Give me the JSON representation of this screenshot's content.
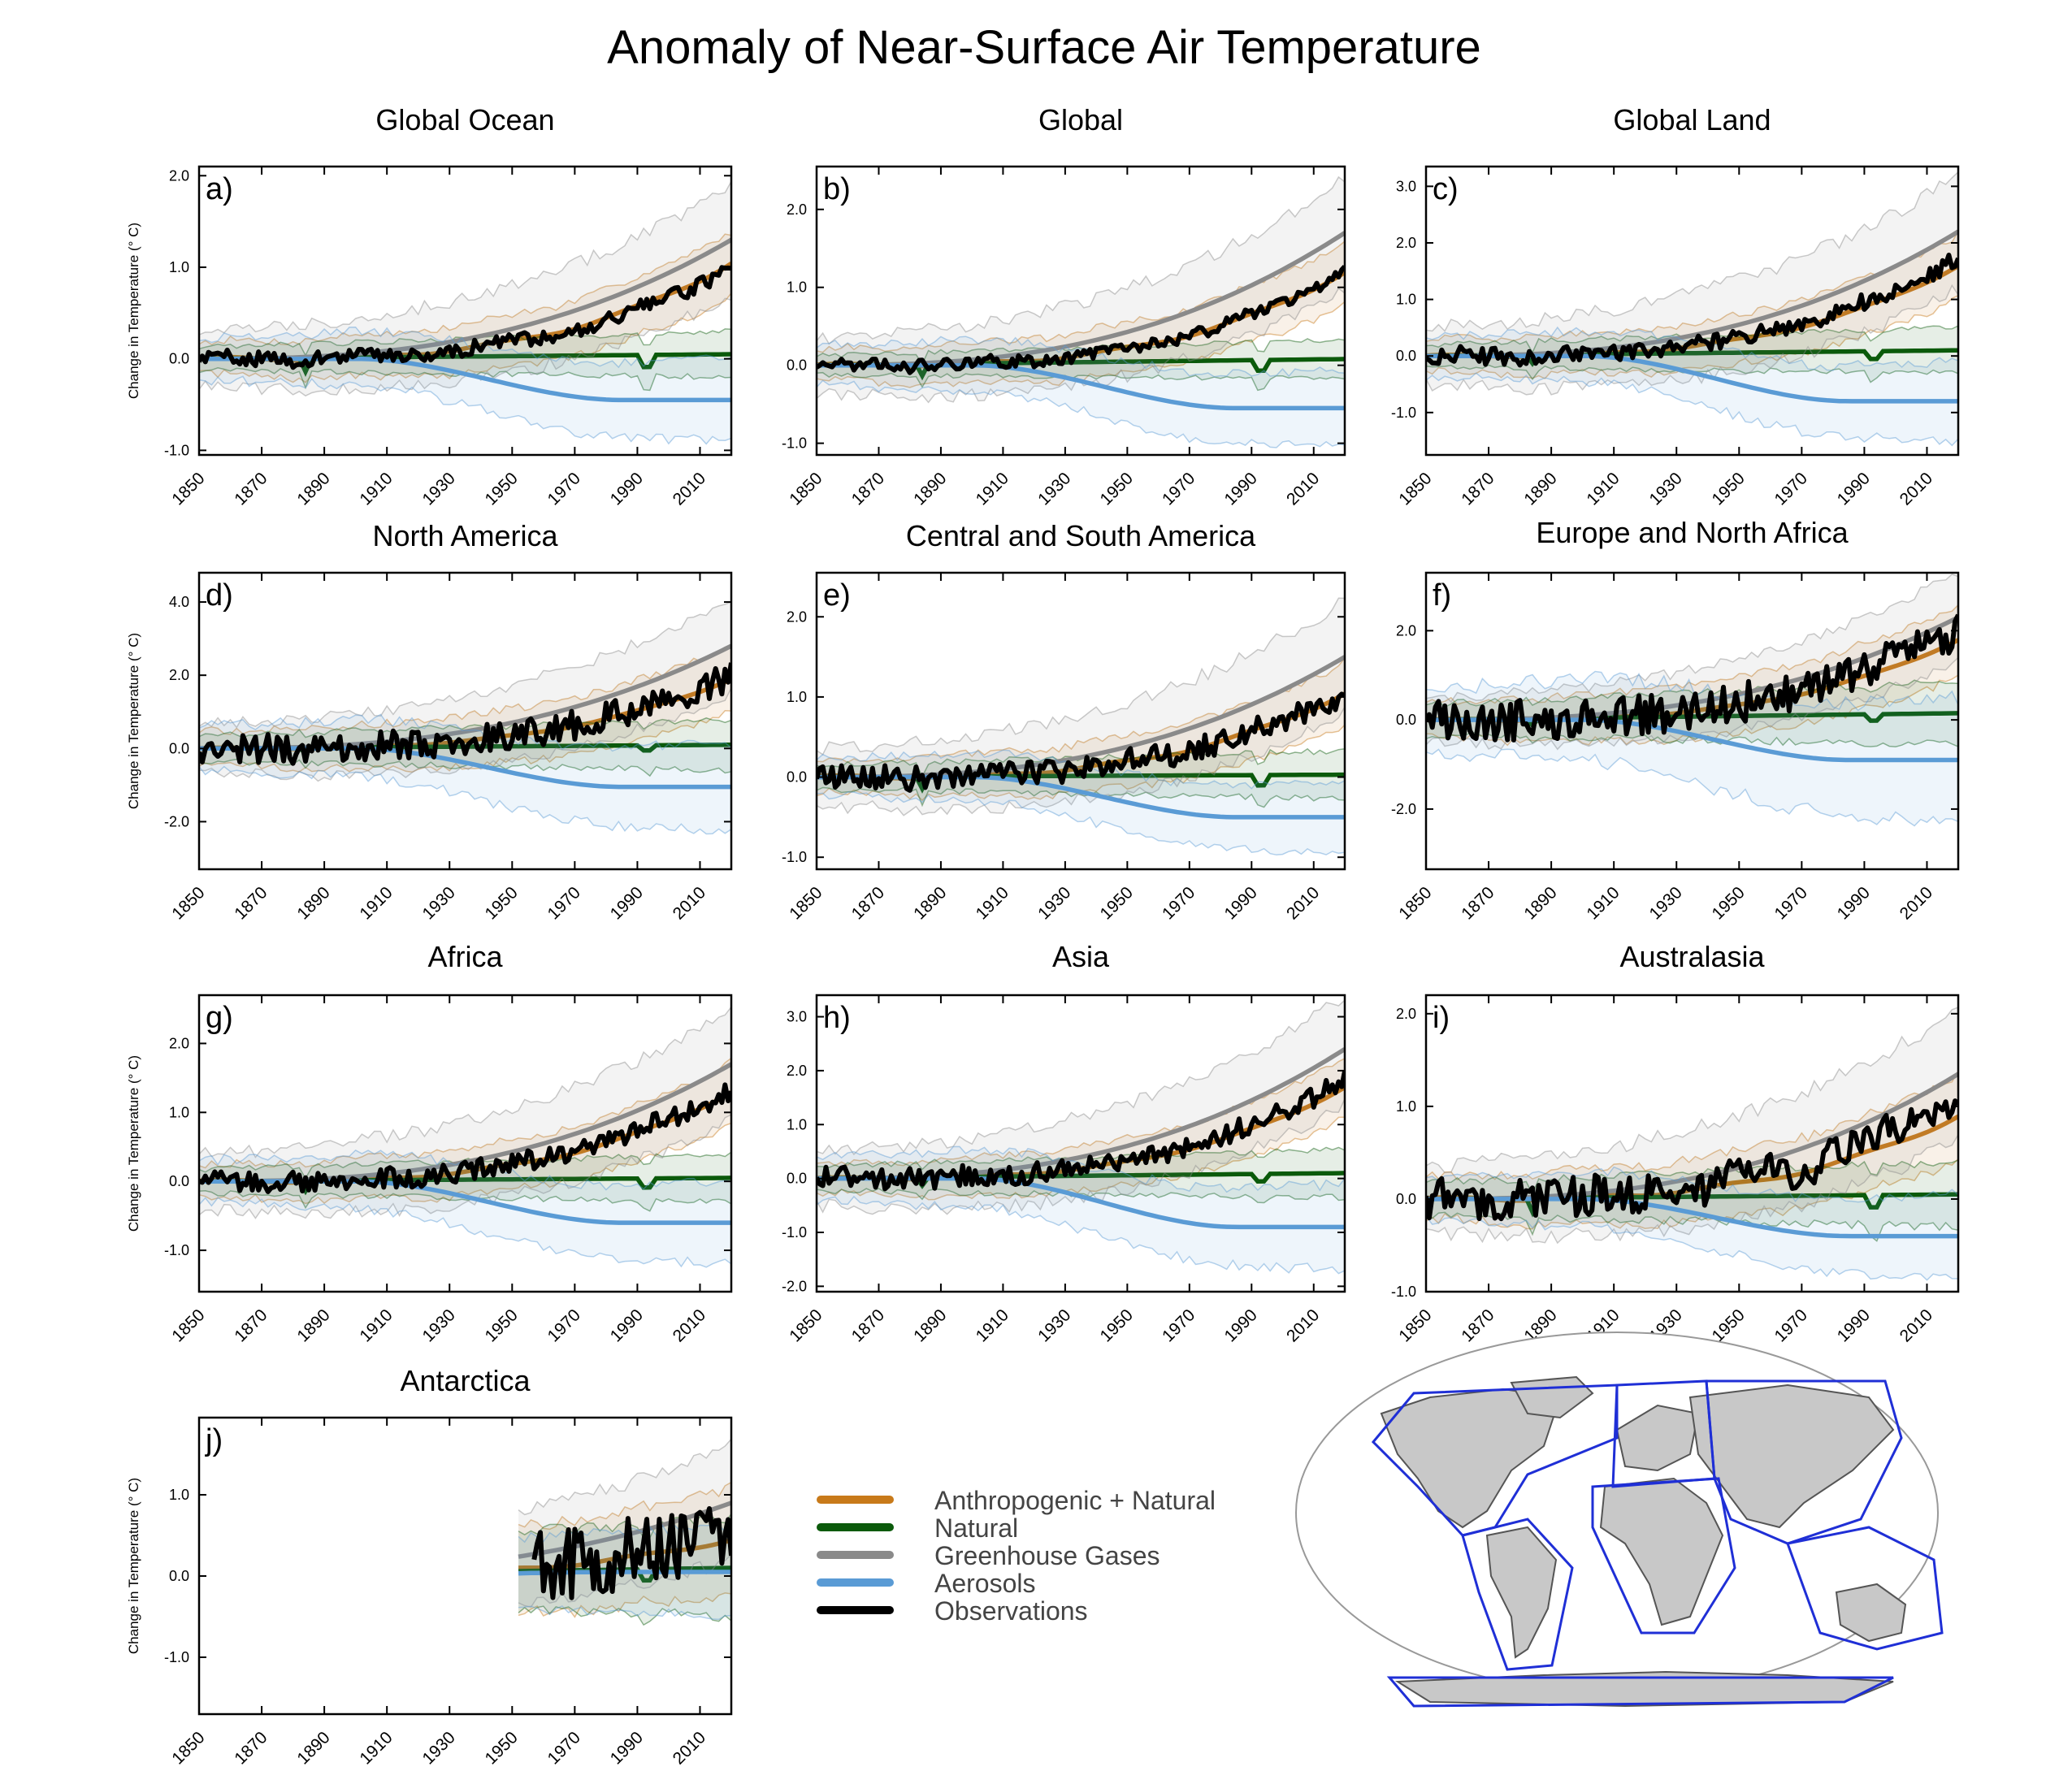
{
  "title": "Anomaly of Near-Surface Air Temperature",
  "y_axis_label": "Change in Temperature (° C)",
  "colors": {
    "anthropogenic_natural": "#c87a1a",
    "natural": "#0b5a0b",
    "ghg": "#8a8a8a",
    "aerosols": "#5a9bd5",
    "observations": "#000000",
    "map_outline": "#1f2fd6",
    "land": "#c8c8c8"
  },
  "legend": {
    "items": [
      {
        "label": "Anthropogenic + Natural",
        "color": "#c87a1a"
      },
      {
        "label": "Natural",
        "color": "#0b5a0b"
      },
      {
        "label": "Greenhouse Gases",
        "color": "#8a8a8a"
      },
      {
        "label": "Aerosols",
        "color": "#5a9bd5"
      },
      {
        "label": "Observations",
        "color": "#000000"
      }
    ]
  },
  "map": {
    "type": "world-map",
    "region_outline_color": "#1f2fd6"
  },
  "chart_data": [
    {
      "letter": "a)",
      "title": "Global Ocean",
      "type": "line",
      "x": [
        1850,
        2020
      ],
      "xticks": [
        "1850",
        "1870",
        "1890",
        "1910",
        "1930",
        "1950",
        "1970",
        "1990",
        "2010"
      ],
      "ylim": [
        -1.05,
        2.1
      ],
      "yticks": [
        "-1.0",
        "0.0",
        "1.0",
        "2.0"
      ],
      "ytick_values": [
        -1,
        0,
        1,
        2
      ],
      "series": [
        {
          "name": "Anthropogenic + Natural",
          "end": 1.05,
          "band": 0.35
        },
        {
          "name": "Natural",
          "end": 0.05,
          "band": 0.25
        },
        {
          "name": "Greenhouse Gases",
          "end": 1.3,
          "band": 0.6
        },
        {
          "name": "Aerosols",
          "end": -0.45,
          "band": 0.45
        },
        {
          "name": "Observations",
          "end": 1.0,
          "noise": 0.08,
          "start_year": 1850
        }
      ]
    },
    {
      "letter": "b)",
      "title": "Global",
      "type": "line",
      "x": [
        1850,
        2020
      ],
      "xticks": [
        "1850",
        "1870",
        "1890",
        "1910",
        "1930",
        "1950",
        "1970",
        "1990",
        "2010"
      ],
      "ylim": [
        -1.15,
        2.55
      ],
      "yticks": [
        "-1.0",
        "0.0",
        "1.0",
        "2.0"
      ],
      "ytick_values": [
        -1,
        0,
        1,
        2
      ],
      "series": [
        {
          "name": "Anthropogenic + Natural",
          "end": 1.2,
          "band": 0.4
        },
        {
          "name": "Natural",
          "end": 0.08,
          "band": 0.25
        },
        {
          "name": "Greenhouse Gases",
          "end": 1.7,
          "band": 0.7
        },
        {
          "name": "Aerosols",
          "end": -0.55,
          "band": 0.5
        },
        {
          "name": "Observations",
          "end": 1.2,
          "noise": 0.08,
          "start_year": 1850
        }
      ]
    },
    {
      "letter": "c)",
      "title": "Global Land",
      "type": "line",
      "x": [
        1850,
        2020
      ],
      "xticks": [
        "1850",
        "1870",
        "1890",
        "1910",
        "1930",
        "1950",
        "1970",
        "1990",
        "2010"
      ],
      "ylim": [
        -1.75,
        3.35
      ],
      "yticks": [
        "-1.0",
        "0.0",
        "1.0",
        "2.0",
        "3.0"
      ],
      "ytick_values": [
        -1,
        0,
        1,
        2,
        3
      ],
      "series": [
        {
          "name": "Anthropogenic + Natural",
          "end": 1.6,
          "band": 0.55
        },
        {
          "name": "Natural",
          "end": 0.1,
          "band": 0.4
        },
        {
          "name": "Greenhouse Gases",
          "end": 2.2,
          "band": 1.0
        },
        {
          "name": "Aerosols",
          "end": -0.8,
          "band": 0.7
        },
        {
          "name": "Observations",
          "end": 1.75,
          "noise": 0.15,
          "start_year": 1850
        }
      ]
    },
    {
      "letter": "d)",
      "title": "North America",
      "type": "line",
      "x": [
        1850,
        2020
      ],
      "xticks": [
        "1850",
        "1870",
        "1890",
        "1910",
        "1930",
        "1950",
        "1970",
        "1990",
        "2010"
      ],
      "ylim": [
        -3.3,
        4.8
      ],
      "yticks": [
        "-2.0",
        "0.0",
        "2.0",
        "4.0"
      ],
      "ytick_values": [
        -2,
        0,
        2,
        4
      ],
      "series": [
        {
          "name": "Anthropogenic + Natural",
          "end": 1.9,
          "band": 0.9
        },
        {
          "name": "Natural",
          "end": 0.1,
          "band": 0.7
        },
        {
          "name": "Greenhouse Gases",
          "end": 2.8,
          "band": 1.3
        },
        {
          "name": "Aerosols",
          "end": -1.05,
          "band": 1.2
        },
        {
          "name": "Observations",
          "end": 2.0,
          "noise": 0.4,
          "start_year": 1850
        }
      ]
    },
    {
      "letter": "e)",
      "title": "Central and South America",
      "type": "line",
      "x": [
        1850,
        2020
      ],
      "xticks": [
        "1850",
        "1870",
        "1890",
        "1910",
        "1930",
        "1950",
        "1970",
        "1990",
        "2010"
      ],
      "ylim": [
        -1.15,
        2.55
      ],
      "yticks": [
        "-1.0",
        "0.0",
        "1.0",
        "2.0"
      ],
      "ytick_values": [
        -1,
        0,
        1,
        2
      ],
      "series": [
        {
          "name": "Anthropogenic + Natural",
          "end": 1.05,
          "band": 0.4
        },
        {
          "name": "Natural",
          "end": 0.03,
          "band": 0.3
        },
        {
          "name": "Greenhouse Gases",
          "end": 1.5,
          "band": 0.7
        },
        {
          "name": "Aerosols",
          "end": -0.5,
          "band": 0.45
        },
        {
          "name": "Observations",
          "end": 1.05,
          "noise": 0.15,
          "start_year": 1850
        }
      ]
    },
    {
      "letter": "f)",
      "title": "Europe and North Africa",
      "type": "line",
      "x": [
        1850,
        2020
      ],
      "xticks": [
        "1850",
        "1870",
        "1890",
        "1910",
        "1930",
        "1950",
        "1970",
        "1990",
        "2010"
      ],
      "ylim": [
        -3.35,
        3.3
      ],
      "yticks": [
        "-2.0",
        "0.0",
        "2.0"
      ],
      "ytick_values": [
        -2,
        0,
        2
      ],
      "series": [
        {
          "name": "Anthropogenic + Natural",
          "end": 1.8,
          "band": 0.8
        },
        {
          "name": "Natural",
          "end": 0.15,
          "band": 0.7
        },
        {
          "name": "Greenhouse Gases",
          "end": 2.3,
          "band": 1.0
        },
        {
          "name": "Aerosols",
          "end": -0.9,
          "band": 1.4
        },
        {
          "name": "Observations",
          "end": 2.0,
          "noise": 0.45,
          "start_year": 1850
        }
      ]
    },
    {
      "letter": "g)",
      "title": "Africa",
      "type": "line",
      "x": [
        1850,
        2020
      ],
      "xticks": [
        "1850",
        "1870",
        "1890",
        "1910",
        "1930",
        "1950",
        "1970",
        "1990",
        "2010"
      ],
      "ylim": [
        -1.6,
        2.7
      ],
      "yticks": [
        "-1.0",
        "0.0",
        "1.0",
        "2.0"
      ],
      "ytick_values": [
        -1,
        0,
        1,
        2
      ],
      "series": [
        {
          "name": "Anthropogenic + Natural",
          "end": 1.3,
          "band": 0.45
        },
        {
          "name": "Natural",
          "end": 0.05,
          "band": 0.35
        },
        {
          "name": "Greenhouse Gases",
          "end": 1.7,
          "band": 0.8
        },
        {
          "name": "Aerosols",
          "end": -0.6,
          "band": 0.6
        },
        {
          "name": "Observations",
          "end": 1.35,
          "noise": 0.15,
          "start_year": 1850
        }
      ]
    },
    {
      "letter": "h)",
      "title": "Asia",
      "type": "line",
      "x": [
        1850,
        2020
      ],
      "xticks": [
        "1850",
        "1870",
        "1890",
        "1910",
        "1930",
        "1950",
        "1970",
        "1990",
        "2010"
      ],
      "ylim": [
        -2.1,
        3.4
      ],
      "yticks": [
        "-2.0",
        "-1.0",
        "0.0",
        "1.0",
        "2.0",
        "3.0"
      ],
      "ytick_values": [
        -2,
        -1,
        0,
        1,
        2,
        3
      ],
      "series": [
        {
          "name": "Anthropogenic + Natural",
          "end": 1.7,
          "band": 0.55
        },
        {
          "name": "Natural",
          "end": 0.1,
          "band": 0.45
        },
        {
          "name": "Greenhouse Gases",
          "end": 2.4,
          "band": 1.0
        },
        {
          "name": "Aerosols",
          "end": -0.9,
          "band": 0.8
        },
        {
          "name": "Observations",
          "end": 1.85,
          "noise": 0.2,
          "start_year": 1850
        }
      ]
    },
    {
      "letter": "i)",
      "title": "Australasia",
      "type": "line",
      "x": [
        1850,
        2020
      ],
      "xticks": [
        "1850",
        "1870",
        "1890",
        "1910",
        "1930",
        "1950",
        "1970",
        "1990",
        "2010"
      ],
      "ylim": [
        -1.0,
        2.2
      ],
      "yticks": [
        "-1.0",
        "0.0",
        "1.0",
        "2.0"
      ],
      "ytick_values": [
        -1,
        0,
        1,
        2
      ],
      "series": [
        {
          "name": "Anthropogenic + Natural",
          "end": 0.9,
          "band": 0.45
        },
        {
          "name": "Natural",
          "end": 0.05,
          "band": 0.35
        },
        {
          "name": "Greenhouse Gases",
          "end": 1.35,
          "band": 0.7
        },
        {
          "name": "Aerosols",
          "end": -0.4,
          "band": 0.45
        },
        {
          "name": "Observations",
          "end": 1.1,
          "noise": 0.22,
          "start_year": 1850
        }
      ]
    },
    {
      "letter": "j)",
      "title": "Antarctica",
      "type": "line",
      "x": [
        1850,
        2020
      ],
      "xticks": [
        "1850",
        "1870",
        "1890",
        "1910",
        "1930",
        "1950",
        "1970",
        "1990",
        "2010"
      ],
      "ylim": [
        -1.7,
        1.95
      ],
      "yticks": [
        "-1.0",
        "0.0",
        "1.0"
      ],
      "ytick_values": [
        -1,
        0,
        1
      ],
      "series": [
        {
          "name": "Anthropogenic + Natural",
          "end": 0.45,
          "band": 0.65
        },
        {
          "name": "Natural",
          "end": 0.1,
          "band": 0.6
        },
        {
          "name": "Greenhouse Gases",
          "end": 0.9,
          "band": 0.7
        },
        {
          "name": "Aerosols",
          "end": 0.05,
          "band": 0.55
        },
        {
          "name": "Observations",
          "end": 0.5,
          "noise": 0.45,
          "start_year": 1957
        }
      ]
    }
  ]
}
